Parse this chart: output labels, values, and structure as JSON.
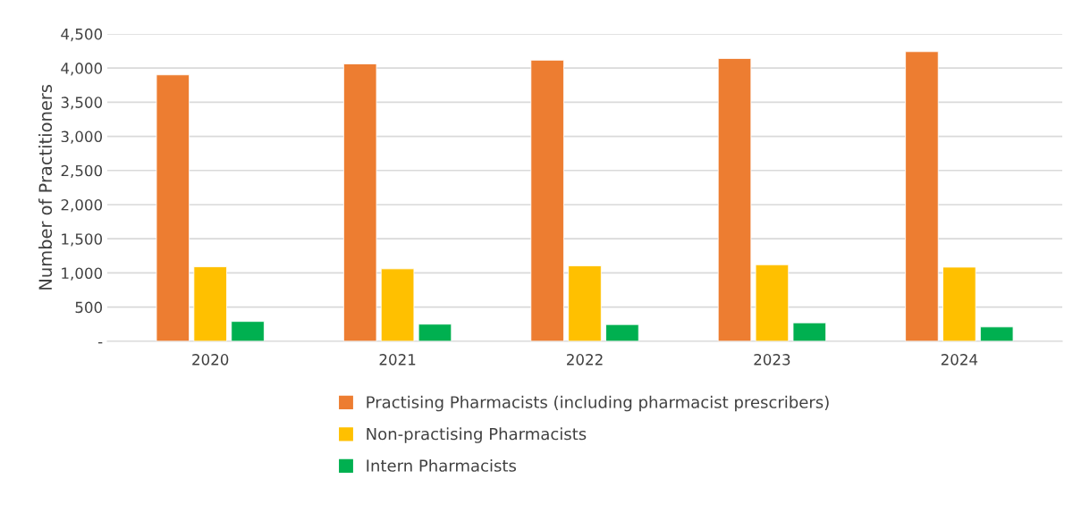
{
  "chart_data": {
    "type": "bar",
    "ylabel": "Number of Practitioners",
    "categories": [
      "2020",
      "2021",
      "2022",
      "2023",
      "2024"
    ],
    "series": [
      {
        "name": "Practising Pharmacists (including pharmacist prescribers)",
        "color": "#ed7d31",
        "values": [
          3900,
          4060,
          4115,
          4140,
          4240
        ]
      },
      {
        "name": "Non-practising Pharmacists",
        "color": "#ffc000",
        "values": [
          1090,
          1060,
          1105,
          1120,
          1085
        ]
      },
      {
        "name": "Intern Pharmacists",
        "color": "#00b050",
        "values": [
          290,
          250,
          245,
          270,
          210
        ]
      }
    ],
    "ylim": [
      0,
      4500
    ],
    "yticks": [
      {
        "value": 0,
        "label": "-"
      },
      {
        "value": 500,
        "label": "500"
      },
      {
        "value": 1000,
        "label": "1,000"
      },
      {
        "value": 1500,
        "label": "1,500"
      },
      {
        "value": 2000,
        "label": "2,000"
      },
      {
        "value": 2500,
        "label": "2,500"
      },
      {
        "value": 3000,
        "label": "3,000"
      },
      {
        "value": 3500,
        "label": "3,500"
      },
      {
        "value": 4000,
        "label": "4,000"
      },
      {
        "value": 4500,
        "label": "4,500"
      }
    ],
    "grid": "y",
    "legend": "bottom"
  }
}
